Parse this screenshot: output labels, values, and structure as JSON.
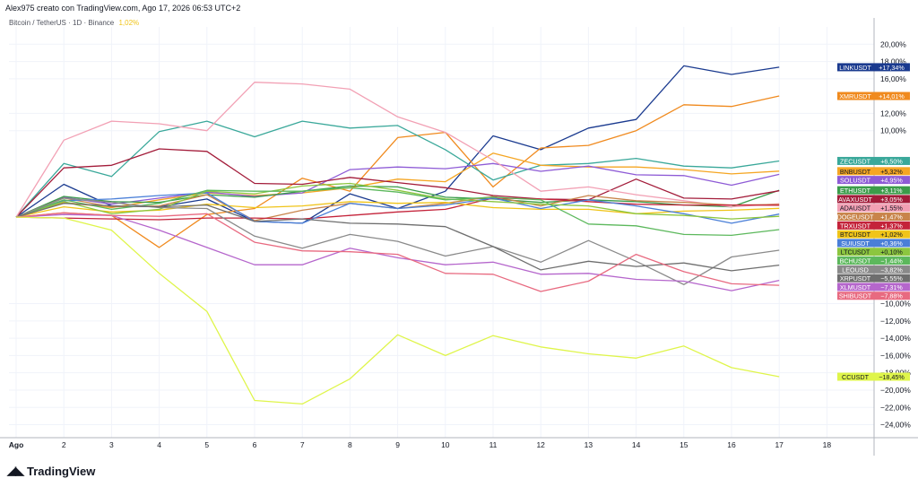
{
  "header": {
    "author_line": "Alex975 creato con TradingView.com, Ago 17, 2026 06:53 UTC+2"
  },
  "symbol": {
    "name": "Bitcoin / TetherUS · 1D · Binance",
    "change": "1,02%"
  },
  "brand": {
    "logo_glyph": "◢◣",
    "name": "TradingView"
  },
  "chart_data": {
    "type": "line",
    "x": [
      "Ago",
      "2",
      "3",
      "4",
      "5",
      "6",
      "7",
      "8",
      "9",
      "10",
      "11",
      "12",
      "13",
      "14",
      "15",
      "16",
      "17"
    ],
    "x_ticks": [
      "Ago",
      "2",
      "3",
      "4",
      "5",
      "6",
      "7",
      "8",
      "9",
      "10",
      "11",
      "12",
      "13",
      "14",
      "15",
      "16",
      "17",
      "18"
    ],
    "y_ticks": [
      "20,00%",
      "18,00%",
      "16,00%",
      "12,00%",
      "10,00%",
      "−10,00%",
      "−12,00%",
      "−14,00%",
      "−16,00%",
      "−18,00%",
      "−20,00%",
      "−22,00%",
      "−24,00%"
    ],
    "y_tick_values": [
      20,
      18,
      16,
      12,
      10,
      -10,
      -12,
      -14,
      -16,
      -18,
      -20,
      -22,
      -24
    ],
    "ylim": [
      -25.5,
      22
    ],
    "grid": true,
    "series": [
      {
        "name": "LINKUSDT",
        "label": "+17,34%",
        "color": "#1a3a8f",
        "values": [
          0,
          3.8,
          1.3,
          1.2,
          2.1,
          -0.5,
          -0.7,
          2.7,
          1.0,
          3.0,
          9.4,
          7.8,
          10.3,
          11.3,
          17.5,
          16.5,
          17.34
        ]
      },
      {
        "name": "XMRUSDT",
        "label": "+14,01%",
        "color": "#f08a1e",
        "values": [
          0,
          0.5,
          0.2,
          -3.5,
          0.3,
          1.0,
          4.5,
          3.0,
          9.2,
          9.8,
          3.5,
          8.0,
          8.3,
          10.0,
          13.0,
          12.8,
          14.01
        ]
      },
      {
        "name": "ZECUSDT",
        "label": "+6,50%",
        "color": "#3aa89a",
        "values": [
          0,
          6.2,
          4.7,
          9.9,
          11.1,
          9.3,
          11.1,
          10.3,
          10.6,
          7.8,
          4.3,
          6.0,
          6.2,
          6.8,
          5.9,
          5.7,
          6.5
        ]
      },
      {
        "name": "BNBUSDT",
        "label": "+5,32%",
        "color": "#f5a623",
        "values": [
          0,
          1.7,
          1.1,
          2.0,
          2.8,
          2.5,
          2.8,
          3.4,
          4.4,
          4.1,
          7.4,
          6.0,
          5.8,
          5.8,
          5.5,
          5.0,
          5.32
        ]
      },
      {
        "name": "SOLUSDT",
        "label": "+4,95%",
        "color": "#8e5bd6",
        "values": [
          0,
          2.3,
          1.5,
          2.2,
          2.9,
          2.4,
          2.8,
          5.5,
          5.8,
          5.6,
          6.2,
          5.3,
          5.9,
          4.9,
          4.8,
          3.7,
          4.95
        ]
      },
      {
        "name": "ETHUSDT",
        "label": "+3,11%",
        "color": "#3b9c4a",
        "values": [
          0,
          2.4,
          1.8,
          1.7,
          2.6,
          2.3,
          3.0,
          3.6,
          3.5,
          2.3,
          2.1,
          1.7,
          2.0,
          1.8,
          1.4,
          1.2,
          3.11
        ]
      },
      {
        "name": "AVAXUSDT",
        "label": "+3,05%",
        "color": "#a31c3a",
        "values": [
          0,
          5.7,
          6.0,
          7.9,
          7.6,
          3.9,
          3.8,
          4.6,
          4.0,
          3.4,
          2.5,
          2.1,
          2.0,
          4.4,
          2.2,
          2.1,
          3.05
        ]
      },
      {
        "name": "ADAUSDT",
        "label": "+1,55%",
        "color": "#f2a0b4",
        "values": [
          0,
          8.9,
          11.1,
          10.8,
          10.0,
          15.6,
          15.4,
          14.8,
          11.6,
          9.8,
          6.6,
          3.0,
          3.5,
          2.6,
          1.9,
          1.2,
          1.55
        ]
      },
      {
        "name": "DOGEUSDT",
        "label": "+1,47%",
        "color": "#c8844a",
        "values": [
          0,
          2.2,
          1.2,
          1.3,
          2.6,
          -0.4,
          0.8,
          1.6,
          1.0,
          1.6,
          2.4,
          1.3,
          2.5,
          1.9,
          1.7,
          1.4,
          1.47
        ]
      },
      {
        "name": "TRXUSDT",
        "label": "+1,37%",
        "color": "#c4233a",
        "values": [
          0,
          -0.1,
          -0.2,
          -0.3,
          -0.1,
          -0.1,
          -0.2,
          0.2,
          0.6,
          0.9,
          2.2,
          2.1,
          1.8,
          1.5,
          1.4,
          1.4,
          1.37
        ]
      },
      {
        "name": "BTCUSDT",
        "label": "+1,02%",
        "color": "#f0c419",
        "values": [
          0,
          1.2,
          0.6,
          0.8,
          1.5,
          1.1,
          1.3,
          1.8,
          1.6,
          1.7,
          1.1,
          0.9,
          0.9,
          0.4,
          0.7,
          0.8,
          1.02
        ]
      },
      {
        "name": "SUIUSDT",
        "label": "+0,36%",
        "color": "#4a7fd8",
        "values": [
          0,
          1.9,
          2.1,
          2.5,
          2.8,
          -0.5,
          -0.7,
          1.6,
          1.0,
          1.4,
          2.2,
          1.0,
          2.0,
          1.3,
          0.4,
          -0.7,
          0.36
        ]
      },
      {
        "name": "LTCUSDT",
        "label": "+0,10%",
        "color": "#8cc63f",
        "values": [
          0,
          1.8,
          0.4,
          0.9,
          3.0,
          2.7,
          3.6,
          3.9,
          3.1,
          2.1,
          1.8,
          1.5,
          1.3,
          0.4,
          0.2,
          -0.2,
          0.1
        ]
      },
      {
        "name": "BCHUSDT",
        "label": "−1,44%",
        "color": "#5cb85c",
        "values": [
          0,
          2.0,
          0.9,
          1.6,
          3.1,
          3.0,
          3.0,
          3.4,
          2.9,
          2.0,
          2.3,
          2.0,
          -0.8,
          -1.0,
          -2.0,
          -2.1,
          -1.44
        ]
      },
      {
        "name": "LEOUSD",
        "label": "−3,82%",
        "color": "#8a8a8a",
        "values": [
          0,
          2.2,
          1.7,
          1.1,
          1.0,
          -2.2,
          -3.6,
          -2.0,
          -2.8,
          -4.5,
          -3.4,
          -5.2,
          -2.7,
          -5.1,
          -7.8,
          -4.6,
          -3.82
        ]
      },
      {
        "name": "XRPUSDT",
        "label": "−5,55%",
        "color": "#6e6e6e",
        "values": [
          0,
          1.6,
          1.3,
          1.2,
          1.4,
          -0.5,
          -0.2,
          -0.7,
          -0.8,
          -1.1,
          -3.4,
          -6.1,
          -5.1,
          -5.7,
          -5.3,
          -6.2,
          -5.55
        ]
      },
      {
        "name": "XLMUSDT",
        "label": "−7,31%",
        "color": "#b566cc",
        "values": [
          0,
          0.3,
          0.2,
          -1.5,
          -3.5,
          -5.5,
          -5.5,
          -3.6,
          -4.7,
          -5.5,
          -5.2,
          -6.6,
          -6.5,
          -7.2,
          -7.4,
          -8.5,
          -7.31
        ]
      },
      {
        "name": "SHIBUSDT",
        "label": "−7,88%",
        "color": "#e86a80",
        "values": [
          0,
          0.5,
          0.2,
          0.1,
          0.4,
          -2.9,
          -3.9,
          -4.0,
          -4.3,
          -6.5,
          -6.6,
          -8.6,
          -7.4,
          -4.3,
          -6.3,
          -7.7,
          -7.88
        ]
      },
      {
        "name": "CCUSDT",
        "label": "−18,45%",
        "color": "#dff54a",
        "values": [
          0,
          -0.1,
          -1.5,
          -6.5,
          -10.9,
          -21.2,
          -21.6,
          -18.7,
          -13.6,
          -16.0,
          -13.7,
          -15.0,
          -15.8,
          -16.3,
          -14.9,
          -17.4,
          -18.45
        ]
      }
    ]
  }
}
